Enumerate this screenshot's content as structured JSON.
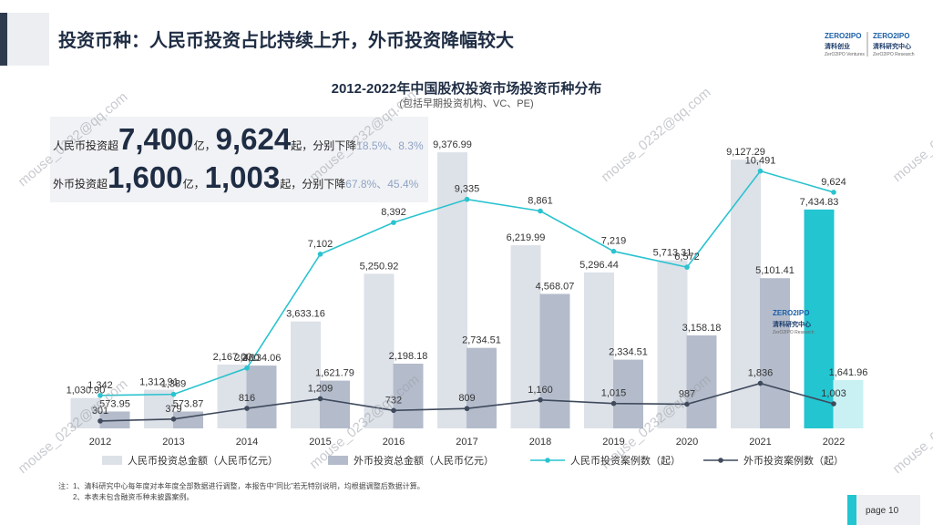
{
  "header": {
    "title": "投资币种：人民币投资占比持续上升，外币投资降幅较大",
    "logo_left": {
      "brand": "ZERO2IPO",
      "name": "清科创业",
      "english": "ZerO2IPO Ventures"
    },
    "logo_right": {
      "brand": "ZERO2IPO",
      "name": "清科研究中心",
      "english": "ZerO2IPO Research"
    }
  },
  "callout": [
    {
      "lead": "人民币投资超",
      "amount": "7,400",
      "unit": "亿，",
      "count": "9,624",
      "tail": "起，分别下降",
      "change": "18.5%、8.3%"
    },
    {
      "lead": "外币投资超",
      "amount": "1,600",
      "unit": "亿，",
      "count": "1,003",
      "tail": "起，分别下降",
      "change": "67.8%、45.4%"
    }
  ],
  "chart_data": {
    "type": "bar",
    "title": "2012-2022年中国股权投资市场投资币种分布",
    "subtitle": "(包括早期投资机构、VC、PE)",
    "categories": [
      "2012",
      "2013",
      "2014",
      "2015",
      "2016",
      "2017",
      "2018",
      "2019",
      "2020",
      "2021",
      "2022"
    ],
    "ylim": [
      0,
      10000
    ],
    "y2lim": [
      0,
      12000
    ],
    "series": [
      {
        "name": "人民币投资总金额（人民币亿元）",
        "type": "bar",
        "color": "#dde1e8",
        "colors": [
          "#dde1e8",
          "#dde1e8",
          "#dde1e8",
          "#dde1e8",
          "#dde1e8",
          "#dde1e8",
          "#dde1e8",
          "#dde1e8",
          "#dde1e8",
          "#dde1e8",
          "#22c5d0"
        ],
        "values": [
          1030.9,
          1312.91,
          2167.0,
          3633.16,
          5250.92,
          9376.99,
          6219.99,
          5296.44,
          5713.31,
          9127.29,
          7434.83
        ],
        "value_labels": [
          "1,030.90",
          "1,312.91",
          "2,167.00",
          "3,633.16",
          "5,250.92",
          "9,376.99",
          "6,219.99",
          "5,296.44",
          "5,713.31",
          "9,127.29",
          "7,434.83"
        ]
      },
      {
        "name": "外币投资总金额（人民币亿元）",
        "type": "bar",
        "color": "#b4bccb",
        "colors": [
          "#b4bccb",
          "#b4bccb",
          "#b4bccb",
          "#b4bccb",
          "#b4bccb",
          "#b4bccb",
          "#b4bccb",
          "#b4bccb",
          "#b4bccb",
          "#b4bccb",
          "#c9f1f3"
        ],
        "values": [
          573.95,
          573.87,
          2134.06,
          1621.79,
          2198.18,
          2734.51,
          4568.07,
          2334.51,
          3158.18,
          5101.41,
          1641.96
        ],
        "value_labels": [
          "573.95",
          "573.87",
          "2,134.06",
          "1,621.79",
          "2,198.18",
          "2,734.51",
          "4,568.07",
          "2,334.51",
          "3,158.18",
          "5,101.41",
          "1,641.96"
        ]
      },
      {
        "name": "人民币投资案例数（起）",
        "type": "line",
        "axis": "y2",
        "color": "#2ac3cf",
        "values": [
          1342,
          1389,
          2460,
          7102,
          8392,
          9335,
          8861,
          7219,
          6572,
          10491,
          9624
        ],
        "value_labels": [
          "1,342",
          "1,389",
          "2,460",
          "7,102",
          "8,392",
          "9,335",
          "8,861",
          "7,219",
          "6,572",
          "10,491",
          "9,624"
        ]
      },
      {
        "name": "外币投资案例数（起）",
        "type": "line",
        "axis": "y2",
        "color": "#3f4a5c",
        "values": [
          301,
          379,
          816,
          1209,
          732,
          809,
          1160,
          1015,
          987,
          1836,
          1003
        ],
        "value_labels": [
          "301",
          "379",
          "816",
          "1,209",
          "732",
          "809",
          "1,160",
          "1,015",
          "987",
          "1,836",
          "1,003"
        ]
      }
    ]
  },
  "notes": [
    "注：1、清科研究中心每年度对本年度全部数据进行调整，本报告中“同比”若无特别说明，均根据调整后数据计算。",
    "2、本表未包含融资币种未披露案例。"
  ],
  "page": "page 10",
  "watermark": "mouse_0232@qq.com"
}
